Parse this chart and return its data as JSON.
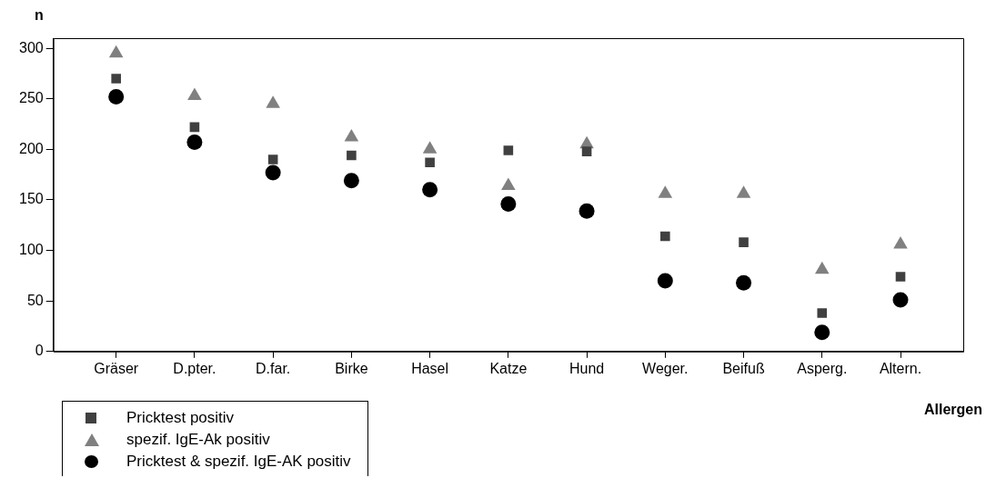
{
  "chart_data": {
    "type": "scatter",
    "xlabel": "Allergen",
    "ylabel": "n",
    "categories": [
      "Gräser",
      "D.pter.",
      "D.far.",
      "Birke",
      "Hasel",
      "Katze",
      "Hund",
      "Weger.",
      "Beifuß",
      "Asperg.",
      "Altern."
    ],
    "series": [
      {
        "name": "Pricktest positiv",
        "color": "#404040",
        "marker": "square",
        "values": [
          270,
          222,
          190,
          194,
          187,
          199,
          198,
          114,
          108,
          38,
          74
        ]
      },
      {
        "name": "spezif. IgE-Ak positiv",
        "color": "#808080",
        "marker": "triangle",
        "values": [
          295,
          253,
          245,
          212,
          200,
          164,
          205,
          156,
          156,
          81,
          106
        ]
      },
      {
        "name": "Pricktest & spezif. IgE-AK positiv",
        "color": "#000000",
        "marker": "circle",
        "values": [
          252,
          207,
          177,
          169,
          160,
          146,
          139,
          70,
          68,
          19,
          51
        ]
      }
    ],
    "ylim": [
      0,
      310
    ],
    "yticks": [
      0,
      50,
      100,
      150,
      200,
      250,
      300
    ],
    "grid": false,
    "legend": "bottom left"
  }
}
